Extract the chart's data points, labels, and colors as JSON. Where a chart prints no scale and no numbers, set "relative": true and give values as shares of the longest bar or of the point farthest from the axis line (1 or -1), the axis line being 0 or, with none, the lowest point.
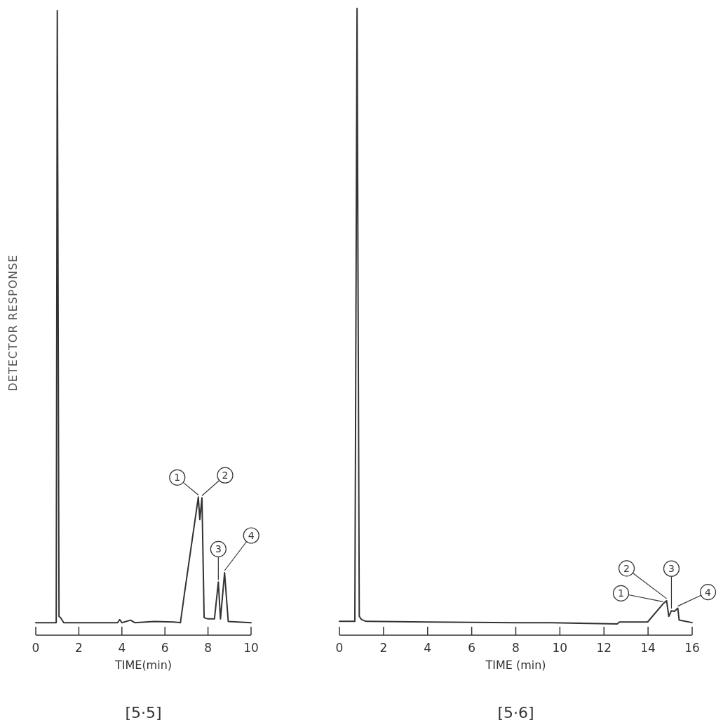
{
  "chart_data": [
    {
      "type": "line",
      "relative": true,
      "ylabel": "DETECTOR RESPONSE",
      "xlabel": "TIME(min)",
      "title": "[5·5]",
      "xlim": [
        0,
        10
      ],
      "xticks": [
        0,
        2,
        4,
        6,
        8,
        10
      ],
      "color": "#333333",
      "x": [
        0,
        0.95,
        1.0,
        1.08,
        1.15,
        1.3,
        3.8,
        3.9,
        4.0,
        4.4,
        4.6,
        5.5,
        6.4,
        6.72,
        6.9,
        7.55,
        7.62,
        7.72,
        7.82,
        8.0,
        8.3,
        8.48,
        8.58,
        8.77,
        8.94,
        10
      ],
      "values": [
        0.02,
        0.02,
        1.0,
        0.03,
        0.028,
        0.02,
        0.02,
        0.025,
        0.02,
        0.024,
        0.02,
        0.022,
        0.021,
        0.02,
        0.065,
        0.221,
        0.185,
        0.22,
        0.028,
        0.026,
        0.026,
        0.085,
        0.026,
        0.1,
        0.022,
        0.02
      ],
      "annotations": [
        {
          "text": "1",
          "x": 7.55,
          "y": 0.221
        },
        {
          "text": "2",
          "x": 7.72,
          "y": 0.22
        },
        {
          "text": "3",
          "x": 8.48,
          "y": 0.085
        },
        {
          "text": "4",
          "x": 8.77,
          "y": 0.1
        }
      ]
    },
    {
      "type": "line",
      "relative": true,
      "xlabel": "TIME (min)",
      "title": "[5·6]",
      "xlim": [
        0,
        16
      ],
      "xticks": [
        0,
        2,
        4,
        6,
        8,
        10,
        12,
        14,
        16
      ],
      "color": "#333333",
      "x": [
        0,
        0.7,
        0.8,
        0.9,
        1.0,
        1.2,
        4,
        8,
        9.6,
        12.6,
        12.7,
        13.98,
        14.68,
        14.84,
        14.94,
        15.06,
        15.2,
        15.35,
        15.41,
        16
      ],
      "values": [
        0.022,
        0.022,
        1.0,
        0.03,
        0.025,
        0.022,
        0.021,
        0.02,
        0.02,
        0.018,
        0.021,
        0.021,
        0.05,
        0.055,
        0.03,
        0.039,
        0.038,
        0.043,
        0.024,
        0.02
      ],
      "annotations": [
        {
          "text": "1",
          "x": 14.68,
          "y": 0.05
        },
        {
          "text": "2",
          "x": 14.84,
          "y": 0.055
        },
        {
          "text": "3",
          "x": 15.06,
          "y": 0.039
        },
        {
          "text": "4",
          "x": 15.35,
          "y": 0.043
        }
      ]
    }
  ]
}
